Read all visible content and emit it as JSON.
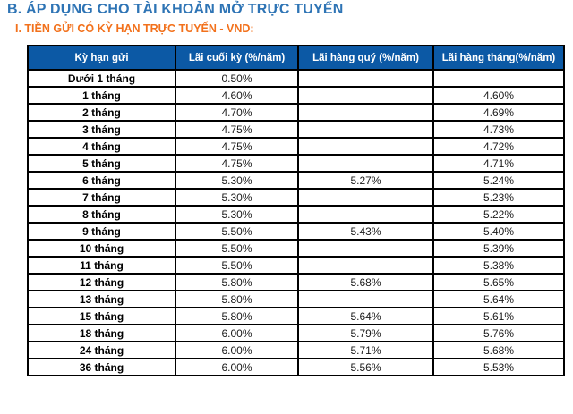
{
  "header": {
    "title": "B. ÁP DỤNG CHO TÀI KHOẢN MỞ TRỰC TUYẾN",
    "subtitle": "I. TIỀN GỬI CÓ KỲ HẠN TRỰC TUYẾN - VND:"
  },
  "colors": {
    "title_blue": "#2E74B5",
    "subtitle_orange": "#F2711C",
    "table_header_bg": "#0C59A5",
    "table_header_text": "#FFFFFF",
    "table_border": "#000000",
    "cell_text": "#1A1A1A"
  },
  "rate_table": {
    "columns": [
      "Kỳ hạn gửi",
      "Lãi cuối kỳ (%/năm)",
      "Lãi hàng quý (%/năm)",
      "Lãi hàng tháng(%/năm)"
    ],
    "rows": [
      {
        "term": "Dưới 1 tháng",
        "end_of_term": "0.50%",
        "quarterly": "",
        "monthly": ""
      },
      {
        "term": "1 tháng",
        "end_of_term": "4.60%",
        "quarterly": "",
        "monthly": "4.60%"
      },
      {
        "term": "2 tháng",
        "end_of_term": "4.70%",
        "quarterly": "",
        "monthly": "4.69%"
      },
      {
        "term": "3 tháng",
        "end_of_term": "4.75%",
        "quarterly": "",
        "monthly": "4.73%"
      },
      {
        "term": "4 tháng",
        "end_of_term": "4.75%",
        "quarterly": "",
        "monthly": "4.72%"
      },
      {
        "term": "5 tháng",
        "end_of_term": "4.75%",
        "quarterly": "",
        "monthly": "4.71%"
      },
      {
        "term": "6 tháng",
        "end_of_term": "5.30%",
        "quarterly": "5.27%",
        "monthly": "5.24%"
      },
      {
        "term": "7 tháng",
        "end_of_term": "5.30%",
        "quarterly": "",
        "monthly": "5.23%"
      },
      {
        "term": "8 tháng",
        "end_of_term": "5.30%",
        "quarterly": "",
        "monthly": "5.22%"
      },
      {
        "term": "9 tháng",
        "end_of_term": "5.50%",
        "quarterly": "5.43%",
        "monthly": "5.40%"
      },
      {
        "term": "10 tháng",
        "end_of_term": "5.50%",
        "quarterly": "",
        "monthly": "5.39%"
      },
      {
        "term": "11 tháng",
        "end_of_term": "5.50%",
        "quarterly": "",
        "monthly": "5.38%"
      },
      {
        "term": "12 tháng",
        "end_of_term": "5.80%",
        "quarterly": "5.68%",
        "monthly": "5.65%"
      },
      {
        "term": "13 tháng",
        "end_of_term": "5.80%",
        "quarterly": "",
        "monthly": "5.64%"
      },
      {
        "term": "15 tháng",
        "end_of_term": "5.80%",
        "quarterly": "5.64%",
        "monthly": "5.61%"
      },
      {
        "term": "18 tháng",
        "end_of_term": "6.00%",
        "quarterly": "5.79%",
        "monthly": "5.76%"
      },
      {
        "term": "24 tháng",
        "end_of_term": "6.00%",
        "quarterly": "5.71%",
        "monthly": "5.68%"
      },
      {
        "term": "36 tháng",
        "end_of_term": "6.00%",
        "quarterly": "5.56%",
        "monthly": "5.53%"
      }
    ]
  }
}
